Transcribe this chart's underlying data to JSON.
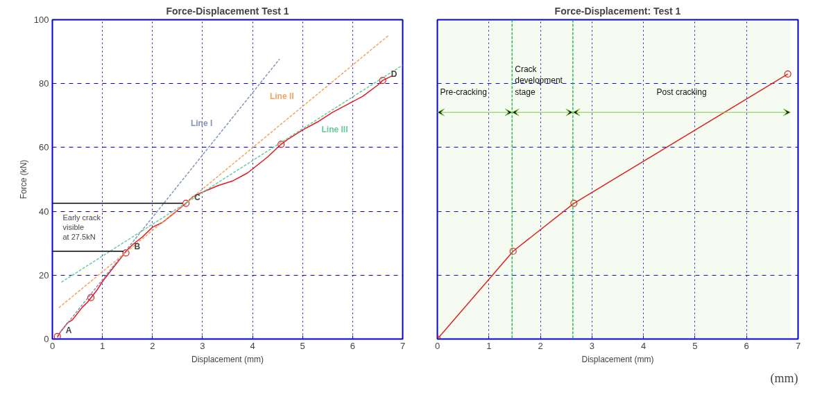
{
  "chart_data": [
    {
      "type": "line",
      "title": "Force-Displacement Test 1",
      "xlabel": "Displacement (mm)",
      "ylabel": "Force (kN)",
      "xlim": [
        0,
        7
      ],
      "ylim": [
        0,
        100
      ],
      "xticks": [
        0,
        1,
        2,
        3,
        4,
        5,
        6,
        7
      ],
      "yticks": [
        0,
        20,
        40,
        60,
        80,
        100
      ],
      "grid": true,
      "line_style": "solid",
      "series": [
        {
          "color": "#e8141c",
          "x": [
            0.1,
            0.15,
            0.2,
            0.3,
            0.4,
            0.5,
            0.6,
            0.7,
            0.8,
            0.9,
            1.0,
            1.1,
            1.2,
            1.3,
            1.4,
            1.47,
            1.6,
            1.8,
            2.0,
            2.2,
            2.4,
            2.55,
            2.67,
            2.8,
            3.0,
            3.3,
            3.6,
            3.9,
            4.1,
            4.3,
            4.57,
            4.7,
            5.0,
            5.3,
            5.6,
            5.9,
            6.2,
            6.5,
            6.6,
            6.8
          ],
          "values": [
            0.5,
            2,
            3,
            5,
            6,
            8,
            10,
            11.5,
            13.5,
            15.5,
            18,
            20,
            22,
            24,
            26,
            27.5,
            29.5,
            32,
            35,
            36.5,
            39,
            41,
            42.5,
            44.5,
            46,
            48,
            49.5,
            52,
            54.5,
            57,
            61,
            62.5,
            65.5,
            68,
            71,
            73.5,
            76,
            79.5,
            81,
            82.5
          ]
        },
        {
          "type": "scatter",
          "marker": "circle",
          "color": "#e8141c",
          "x": [
            0.1,
            0.77,
            1.47,
            2.67,
            4.57,
            6.6
          ],
          "values": [
            0.8,
            13,
            27,
            42.5,
            61,
            81
          ]
        },
        {
          "name": "Line I",
          "color": "#7f96b8",
          "line_style": "dashed",
          "x": [
            0.1,
            4.54
          ],
          "values": [
            1,
            87.7
          ]
        },
        {
          "name": "Line II",
          "color": "#f4a460",
          "line_style": "dashed",
          "x": [
            0.13,
            6.71
          ],
          "values": [
            9.8,
            95
          ]
        },
        {
          "name": "Line III",
          "color": "#66cc99",
          "line_style": "dashed",
          "x": [
            0.18,
            7
          ],
          "values": [
            17.8,
            85.8
          ]
        },
        {
          "color": "#000000",
          "x": [
            0,
            2.6
          ],
          "values": [
            42.5,
            42.5
          ]
        },
        {
          "color": "#000000",
          "x": [
            0,
            1.42
          ],
          "values": [
            27.5,
            27.5
          ]
        }
      ],
      "annotations": [
        "Early crack\nvisible\nat 27.5kN",
        {
          "text": "A",
          "x": 0.1,
          "y": 0.8
        },
        {
          "text": "B",
          "x": 1.47,
          "y": 27
        },
        {
          "text": "C",
          "x": 2.67,
          "y": 42.5
        },
        {
          "text": "D",
          "x": 6.6,
          "y": 81
        }
      ]
    },
    {
      "type": "line",
      "title": "Force-Displacement: Test 1",
      "xlabel": "Displacement (mm)",
      "xlim": [
        0,
        7
      ],
      "ylim": [
        0,
        100
      ],
      "xticks": [
        0,
        1,
        2,
        3,
        4,
        5,
        6,
        7
      ],
      "yticks": [
        0,
        20,
        40,
        60,
        80,
        100
      ],
      "grid": true,
      "tick_labels": "x",
      "marker": "circle",
      "line_style": "solid",
      "series": [
        {
          "color": "#e8141c",
          "x": [
            0,
            1.47,
            2.65,
            6.8
          ],
          "values": [
            0,
            27.5,
            42.5,
            83
          ]
        }
      ],
      "ref_lines": [
        {
          "axis": "x",
          "value": 1.45,
          "color": "#22bb55",
          "line_style": "dashed"
        },
        {
          "axis": "x",
          "value": 2.63,
          "color": "#22bb55",
          "line_style": "dashed"
        }
      ],
      "bands": [
        {
          "axis": "x",
          "from": 0,
          "to": 1.45,
          "label": "Pre-cracking",
          "color": "#7ccc44"
        },
        {
          "axis": "x",
          "from": 1.45,
          "to": 2.63,
          "label": "Crack\ndevelopment\nstage",
          "color": "#7ccc44"
        },
        {
          "axis": "x",
          "from": 2.63,
          "to": 6.85,
          "label": "Post cracking",
          "color": "#7ccc44"
        }
      ],
      "annotations": [
        "(mm)"
      ]
    }
  ]
}
